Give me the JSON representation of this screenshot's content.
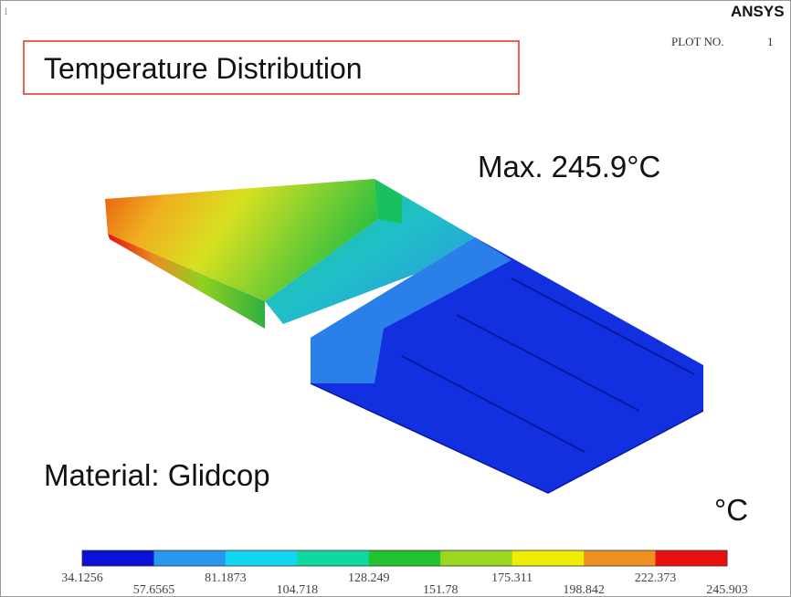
{
  "header": {
    "corner_mark": "1",
    "logo": "ANSYS",
    "plot_label": "PLOT NO.",
    "plot_number": "1",
    "title": "Temperature Distribution"
  },
  "annotations": {
    "max": "Max. 245.9°C",
    "material": "Material: Glidcop",
    "unit": "°C"
  },
  "colorbar": {
    "colors": [
      "#0a12d8",
      "#2a96ec",
      "#12d6f0",
      "#10d8a0",
      "#22c232",
      "#9ad820",
      "#f0ee00",
      "#f09020",
      "#e81010"
    ],
    "labels": [
      "34.1256",
      "57.6565",
      "81.1873",
      "104.718",
      "128.249",
      "151.78",
      "175.311",
      "198.842",
      "222.373",
      "245.903"
    ]
  }
}
